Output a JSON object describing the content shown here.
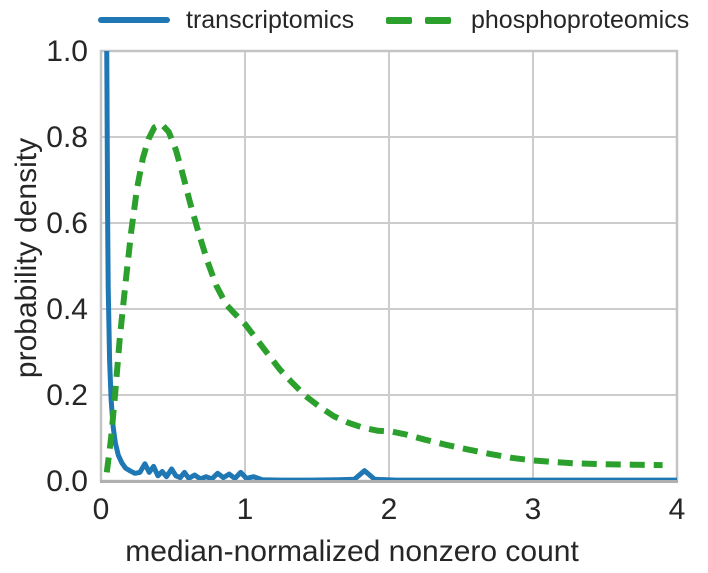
{
  "figure": {
    "background": "#ffffff",
    "grid_color": "#cccccc",
    "border_color": "#c4c4c4",
    "axis_line_color": "#b0b0b0",
    "text_color": "#262626"
  },
  "legend": {
    "items": [
      {
        "label": "transcriptomics",
        "color": "#1f77b4",
        "style": "solid"
      },
      {
        "label": "phosphoproteomics",
        "color": "#2ca02c",
        "style": "dashed"
      }
    ]
  },
  "chart_data": {
    "type": "line",
    "title": "",
    "xlabel": "median-normalized nonzero count",
    "ylabel": "probability density",
    "xlim": [
      0,
      4
    ],
    "ylim": [
      0,
      1
    ],
    "xticks": [
      "0",
      "1",
      "2",
      "3",
      "4"
    ],
    "xtick_values": [
      0,
      1,
      2,
      3,
      4
    ],
    "yticks": [
      "0.0",
      "0.2",
      "0.4",
      "0.6",
      "0.8",
      "1.0"
    ],
    "ytick_values": [
      0,
      0.2,
      0.4,
      0.6,
      0.8,
      1.0
    ],
    "grid": true,
    "legend_position": "top",
    "series": [
      {
        "name": "transcriptomics",
        "color": "#1f77b4",
        "dash": "solid",
        "stroke_width": 5,
        "points": [
          [
            0.038,
            1.1
          ],
          [
            0.042,
            0.9
          ],
          [
            0.046,
            0.62
          ],
          [
            0.05,
            0.45
          ],
          [
            0.06,
            0.28
          ],
          [
            0.07,
            0.19
          ],
          [
            0.085,
            0.125
          ],
          [
            0.1,
            0.088
          ],
          [
            0.12,
            0.06
          ],
          [
            0.145,
            0.042
          ],
          [
            0.17,
            0.03
          ],
          [
            0.2,
            0.024
          ],
          [
            0.235,
            0.018
          ],
          [
            0.27,
            0.02
          ],
          [
            0.305,
            0.04
          ],
          [
            0.335,
            0.02
          ],
          [
            0.365,
            0.034
          ],
          [
            0.395,
            0.012
          ],
          [
            0.425,
            0.022
          ],
          [
            0.455,
            0.01
          ],
          [
            0.49,
            0.028
          ],
          [
            0.52,
            0.012
          ],
          [
            0.55,
            0.008
          ],
          [
            0.58,
            0.02
          ],
          [
            0.61,
            0.006
          ],
          [
            0.65,
            0.014
          ],
          [
            0.69,
            0.005
          ],
          [
            0.73,
            0.01
          ],
          [
            0.77,
            0.005
          ],
          [
            0.81,
            0.018
          ],
          [
            0.85,
            0.008
          ],
          [
            0.89,
            0.016
          ],
          [
            0.93,
            0.006
          ],
          [
            0.97,
            0.02
          ],
          [
            1.01,
            0.006
          ],
          [
            1.06,
            0.01
          ],
          [
            1.12,
            0.003
          ],
          [
            1.25,
            0.002
          ],
          [
            1.45,
            0.002
          ],
          [
            1.65,
            0.003
          ],
          [
            1.76,
            0.004
          ],
          [
            1.83,
            0.024
          ],
          [
            1.9,
            0.004
          ],
          [
            2.05,
            0.002
          ],
          [
            2.4,
            0.002
          ],
          [
            2.8,
            0.002
          ],
          [
            3.2,
            0.002
          ],
          [
            3.6,
            0.002
          ],
          [
            4.0,
            0.002
          ]
        ]
      },
      {
        "name": "phosphoproteomics",
        "color": "#2ca02c",
        "dash": "dashed",
        "stroke_width": 6,
        "points": [
          [
            0.04,
            0.02
          ],
          [
            0.07,
            0.1
          ],
          [
            0.1,
            0.21
          ],
          [
            0.13,
            0.33
          ],
          [
            0.17,
            0.46
          ],
          [
            0.21,
            0.58
          ],
          [
            0.25,
            0.68
          ],
          [
            0.29,
            0.75
          ],
          [
            0.33,
            0.795
          ],
          [
            0.37,
            0.822
          ],
          [
            0.42,
            0.83
          ],
          [
            0.47,
            0.812
          ],
          [
            0.52,
            0.77
          ],
          [
            0.57,
            0.71
          ],
          [
            0.62,
            0.645
          ],
          [
            0.68,
            0.575
          ],
          [
            0.74,
            0.51
          ],
          [
            0.8,
            0.455
          ],
          [
            0.87,
            0.41
          ],
          [
            0.94,
            0.385
          ],
          [
            1.0,
            0.365
          ],
          [
            1.08,
            0.33
          ],
          [
            1.16,
            0.295
          ],
          [
            1.24,
            0.26
          ],
          [
            1.33,
            0.228
          ],
          [
            1.42,
            0.198
          ],
          [
            1.52,
            0.172
          ],
          [
            1.62,
            0.15
          ],
          [
            1.72,
            0.135
          ],
          [
            1.82,
            0.124
          ],
          [
            1.92,
            0.117
          ],
          [
            2.02,
            0.115
          ],
          [
            2.12,
            0.108
          ],
          [
            2.25,
            0.096
          ],
          [
            2.4,
            0.084
          ],
          [
            2.55,
            0.073
          ],
          [
            2.7,
            0.063
          ],
          [
            2.85,
            0.054
          ],
          [
            3.0,
            0.048
          ],
          [
            3.15,
            0.044
          ],
          [
            3.3,
            0.041
          ],
          [
            3.5,
            0.039
          ],
          [
            3.7,
            0.038
          ],
          [
            3.9,
            0.037
          ]
        ]
      }
    ]
  }
}
